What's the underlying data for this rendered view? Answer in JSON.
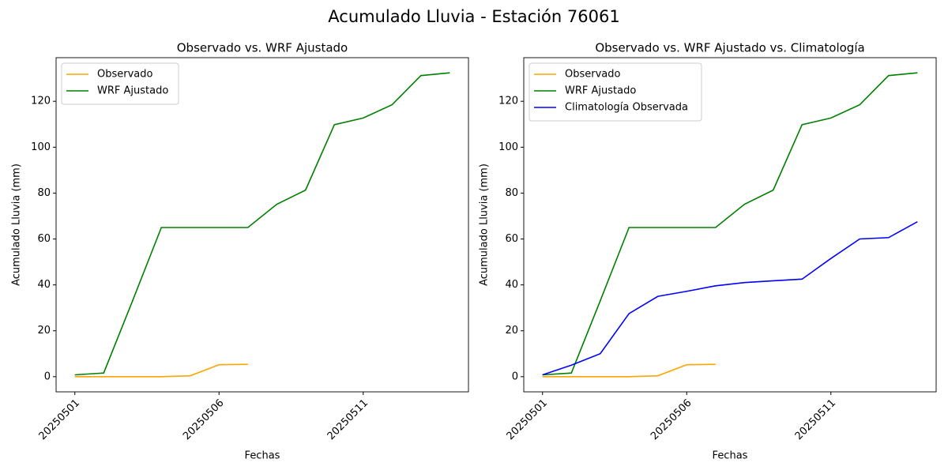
{
  "figure_title": "Acumulado Lluvia - Estación 76061",
  "chart_data": [
    {
      "type": "line",
      "title": "Observado vs. WRF Ajustado",
      "xlabel": "Fechas",
      "ylabel": "Acumulado Lluvia (mm)",
      "categories": [
        "20250501",
        null,
        null,
        null,
        null,
        "20250506",
        null,
        null,
        null,
        null,
        "20250511",
        null,
        null,
        null
      ],
      "series": [
        {
          "name": "Observado",
          "color": "#ffa500",
          "values": [
            0,
            0,
            0,
            0,
            0.4,
            5.2,
            5.4,
            null,
            null,
            null,
            null,
            null,
            null,
            null
          ]
        },
        {
          "name": "WRF Ajustado",
          "color": "#008000",
          "values": [
            0.8,
            1.6,
            33,
            65,
            65,
            65,
            65,
            75.1,
            81.3,
            109.8,
            112.7,
            118.5,
            131.2,
            132.4
          ]
        }
      ],
      "ylim": [
        -6.6,
        139
      ],
      "yticks": [
        0,
        20,
        40,
        60,
        80,
        100,
        120
      ],
      "legend": "upper left"
    },
    {
      "type": "line",
      "title": "Observado vs. WRF Ajustado vs. Climatología",
      "xlabel": "Fechas",
      "ylabel": "Acumulado Lluvia (mm)",
      "categories": [
        "20250501",
        null,
        null,
        null,
        null,
        "20250506",
        null,
        null,
        null,
        null,
        "20250511",
        null,
        null,
        null
      ],
      "series": [
        {
          "name": "Observado",
          "color": "#ffa500",
          "values": [
            0,
            0,
            0,
            0,
            0.4,
            5.2,
            5.4,
            null,
            null,
            null,
            null,
            null,
            null,
            null
          ]
        },
        {
          "name": "WRF Ajustado",
          "color": "#008000",
          "values": [
            0.8,
            1.6,
            33,
            65,
            65,
            65,
            65,
            75.1,
            81.3,
            109.8,
            112.7,
            118.5,
            131.2,
            132.4
          ]
        },
        {
          "name": "Climatología Observada",
          "color": "#0000ff",
          "values": [
            0.8,
            5,
            10,
            27.5,
            35,
            37.2,
            39.6,
            41,
            41.8,
            42.5,
            51.5,
            60,
            60.6,
            67.5
          ]
        }
      ],
      "ylim": [
        -6.6,
        139
      ],
      "yticks": [
        0,
        20,
        40,
        60,
        80,
        100,
        120
      ],
      "legend": "upper left"
    }
  ]
}
